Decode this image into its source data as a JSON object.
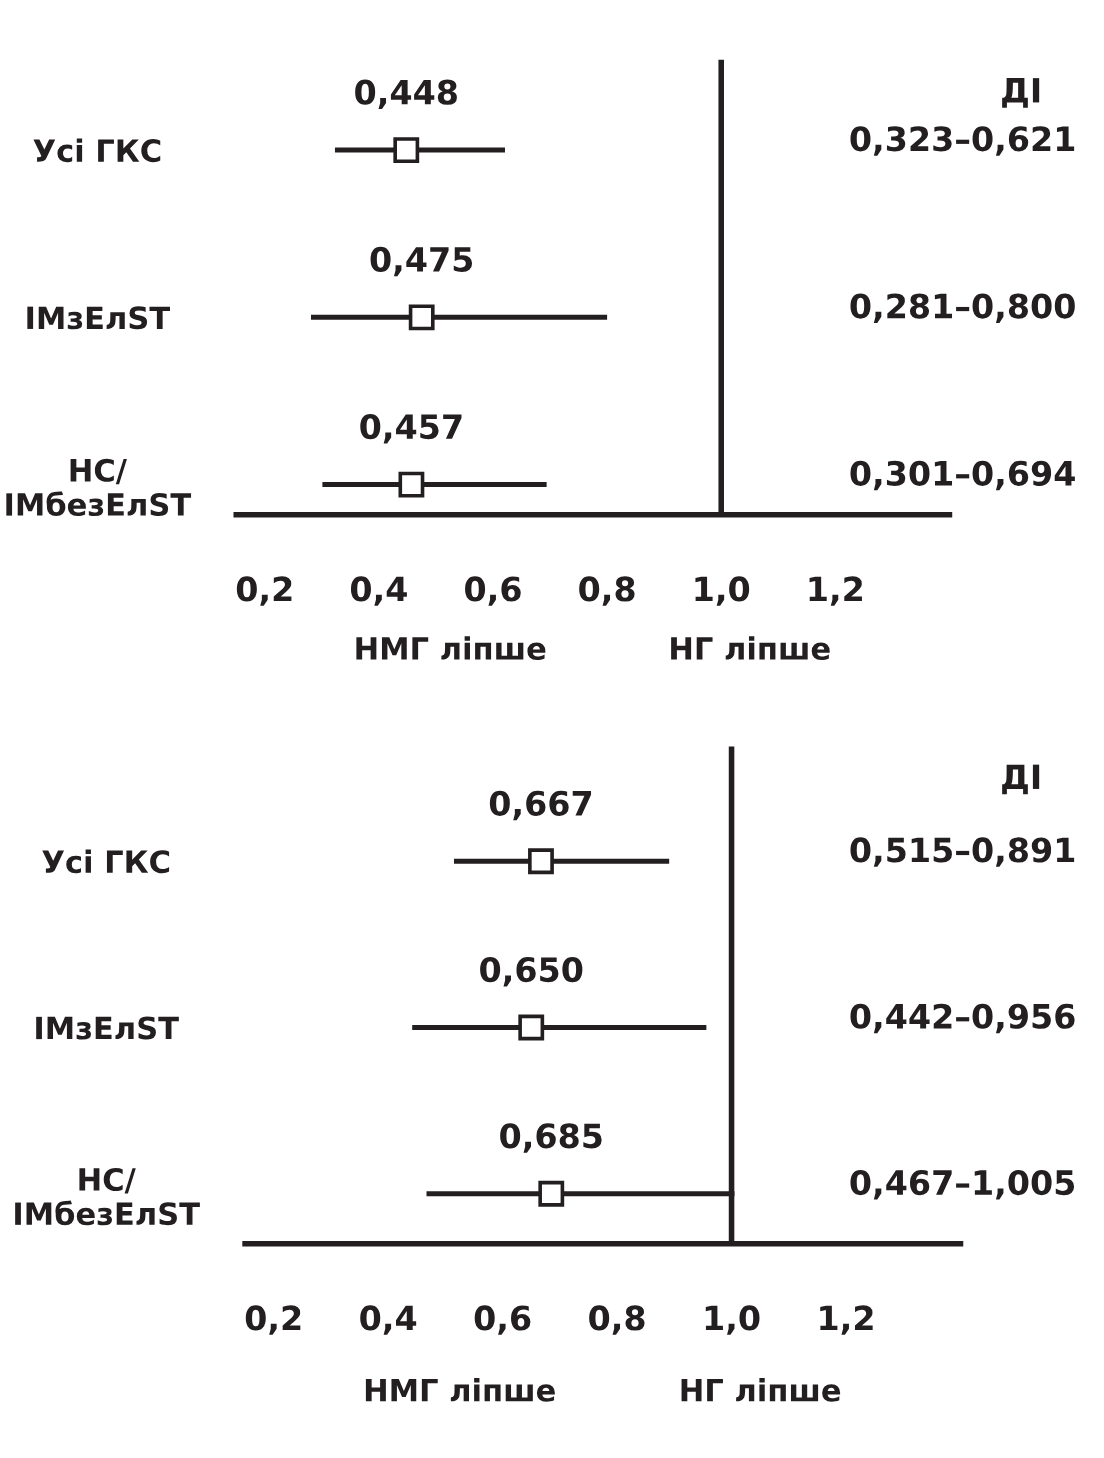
{
  "chart_data": [
    {
      "type": "scatter",
      "orientation": "horizontal",
      "categories": [
        "Усі ГКС",
        "IMзЕлST",
        "НС/\nIMбезЕлST"
      ],
      "series": [
        {
          "color": "#231f20",
          "values": [
            0.448,
            0.475,
            0.457
          ],
          "errors": [
            [
              0.323,
              0.621
            ],
            [
              0.281,
              0.8
            ],
            [
              0.301,
              0.694
            ]
          ],
          "value_labels": [
            "0,448",
            "0,475",
            "0,457"
          ]
        }
      ],
      "marker": "square",
      "xlim": [
        0.15,
        1.4
      ],
      "xticks": [
        {
          "value": 0.2,
          "label": "0,2"
        },
        {
          "value": 0.4,
          "label": "0,4"
        },
        {
          "value": 0.6,
          "label": "0,6"
        },
        {
          "value": 0.8,
          "label": "0,8"
        },
        {
          "value": 1.0,
          "label": "1,0"
        },
        {
          "value": 1.2,
          "label": "1,2"
        }
      ],
      "ref_lines": [
        {
          "axis": "x",
          "value": 1.0,
          "color": "#231f20"
        }
      ],
      "annotations": [
        "ДІ",
        "0,323–0,621",
        "0,281–0,800",
        "0,301–0,694",
        "НМГ ліпше",
        "НГ ліпше"
      ],
      "grid": false,
      "legend": false
    },
    {
      "type": "scatter",
      "orientation": "horizontal",
      "categories": [
        "Усі ГКС",
        "IMзЕлST",
        "НС/\nIMбезЕлST"
      ],
      "series": [
        {
          "color": "#231f20",
          "values": [
            0.667,
            0.65,
            0.685
          ],
          "errors": [
            [
              0.515,
              0.891
            ],
            [
              0.442,
              0.956
            ],
            [
              0.467,
              1.005
            ]
          ],
          "value_labels": [
            "0,667",
            "0,650",
            "0,685"
          ]
        }
      ],
      "marker": "square",
      "xlim": [
        0.15,
        1.4
      ],
      "xticks": [
        {
          "value": 0.2,
          "label": "0,2"
        },
        {
          "value": 0.4,
          "label": "0,4"
        },
        {
          "value": 0.6,
          "label": "0,6"
        },
        {
          "value": 0.8,
          "label": "0,8"
        },
        {
          "value": 1.0,
          "label": "1,0"
        },
        {
          "value": 1.2,
          "label": "1,2"
        }
      ],
      "ref_lines": [
        {
          "axis": "x",
          "value": 1.0,
          "color": "#231f20"
        }
      ],
      "annotations": [
        "ДІ",
        "0,515–0,891",
        "0,442–0,956",
        "0,467–1,005",
        "НМГ ліпше",
        "НГ ліпше"
      ],
      "grid": false,
      "legend": false
    }
  ]
}
